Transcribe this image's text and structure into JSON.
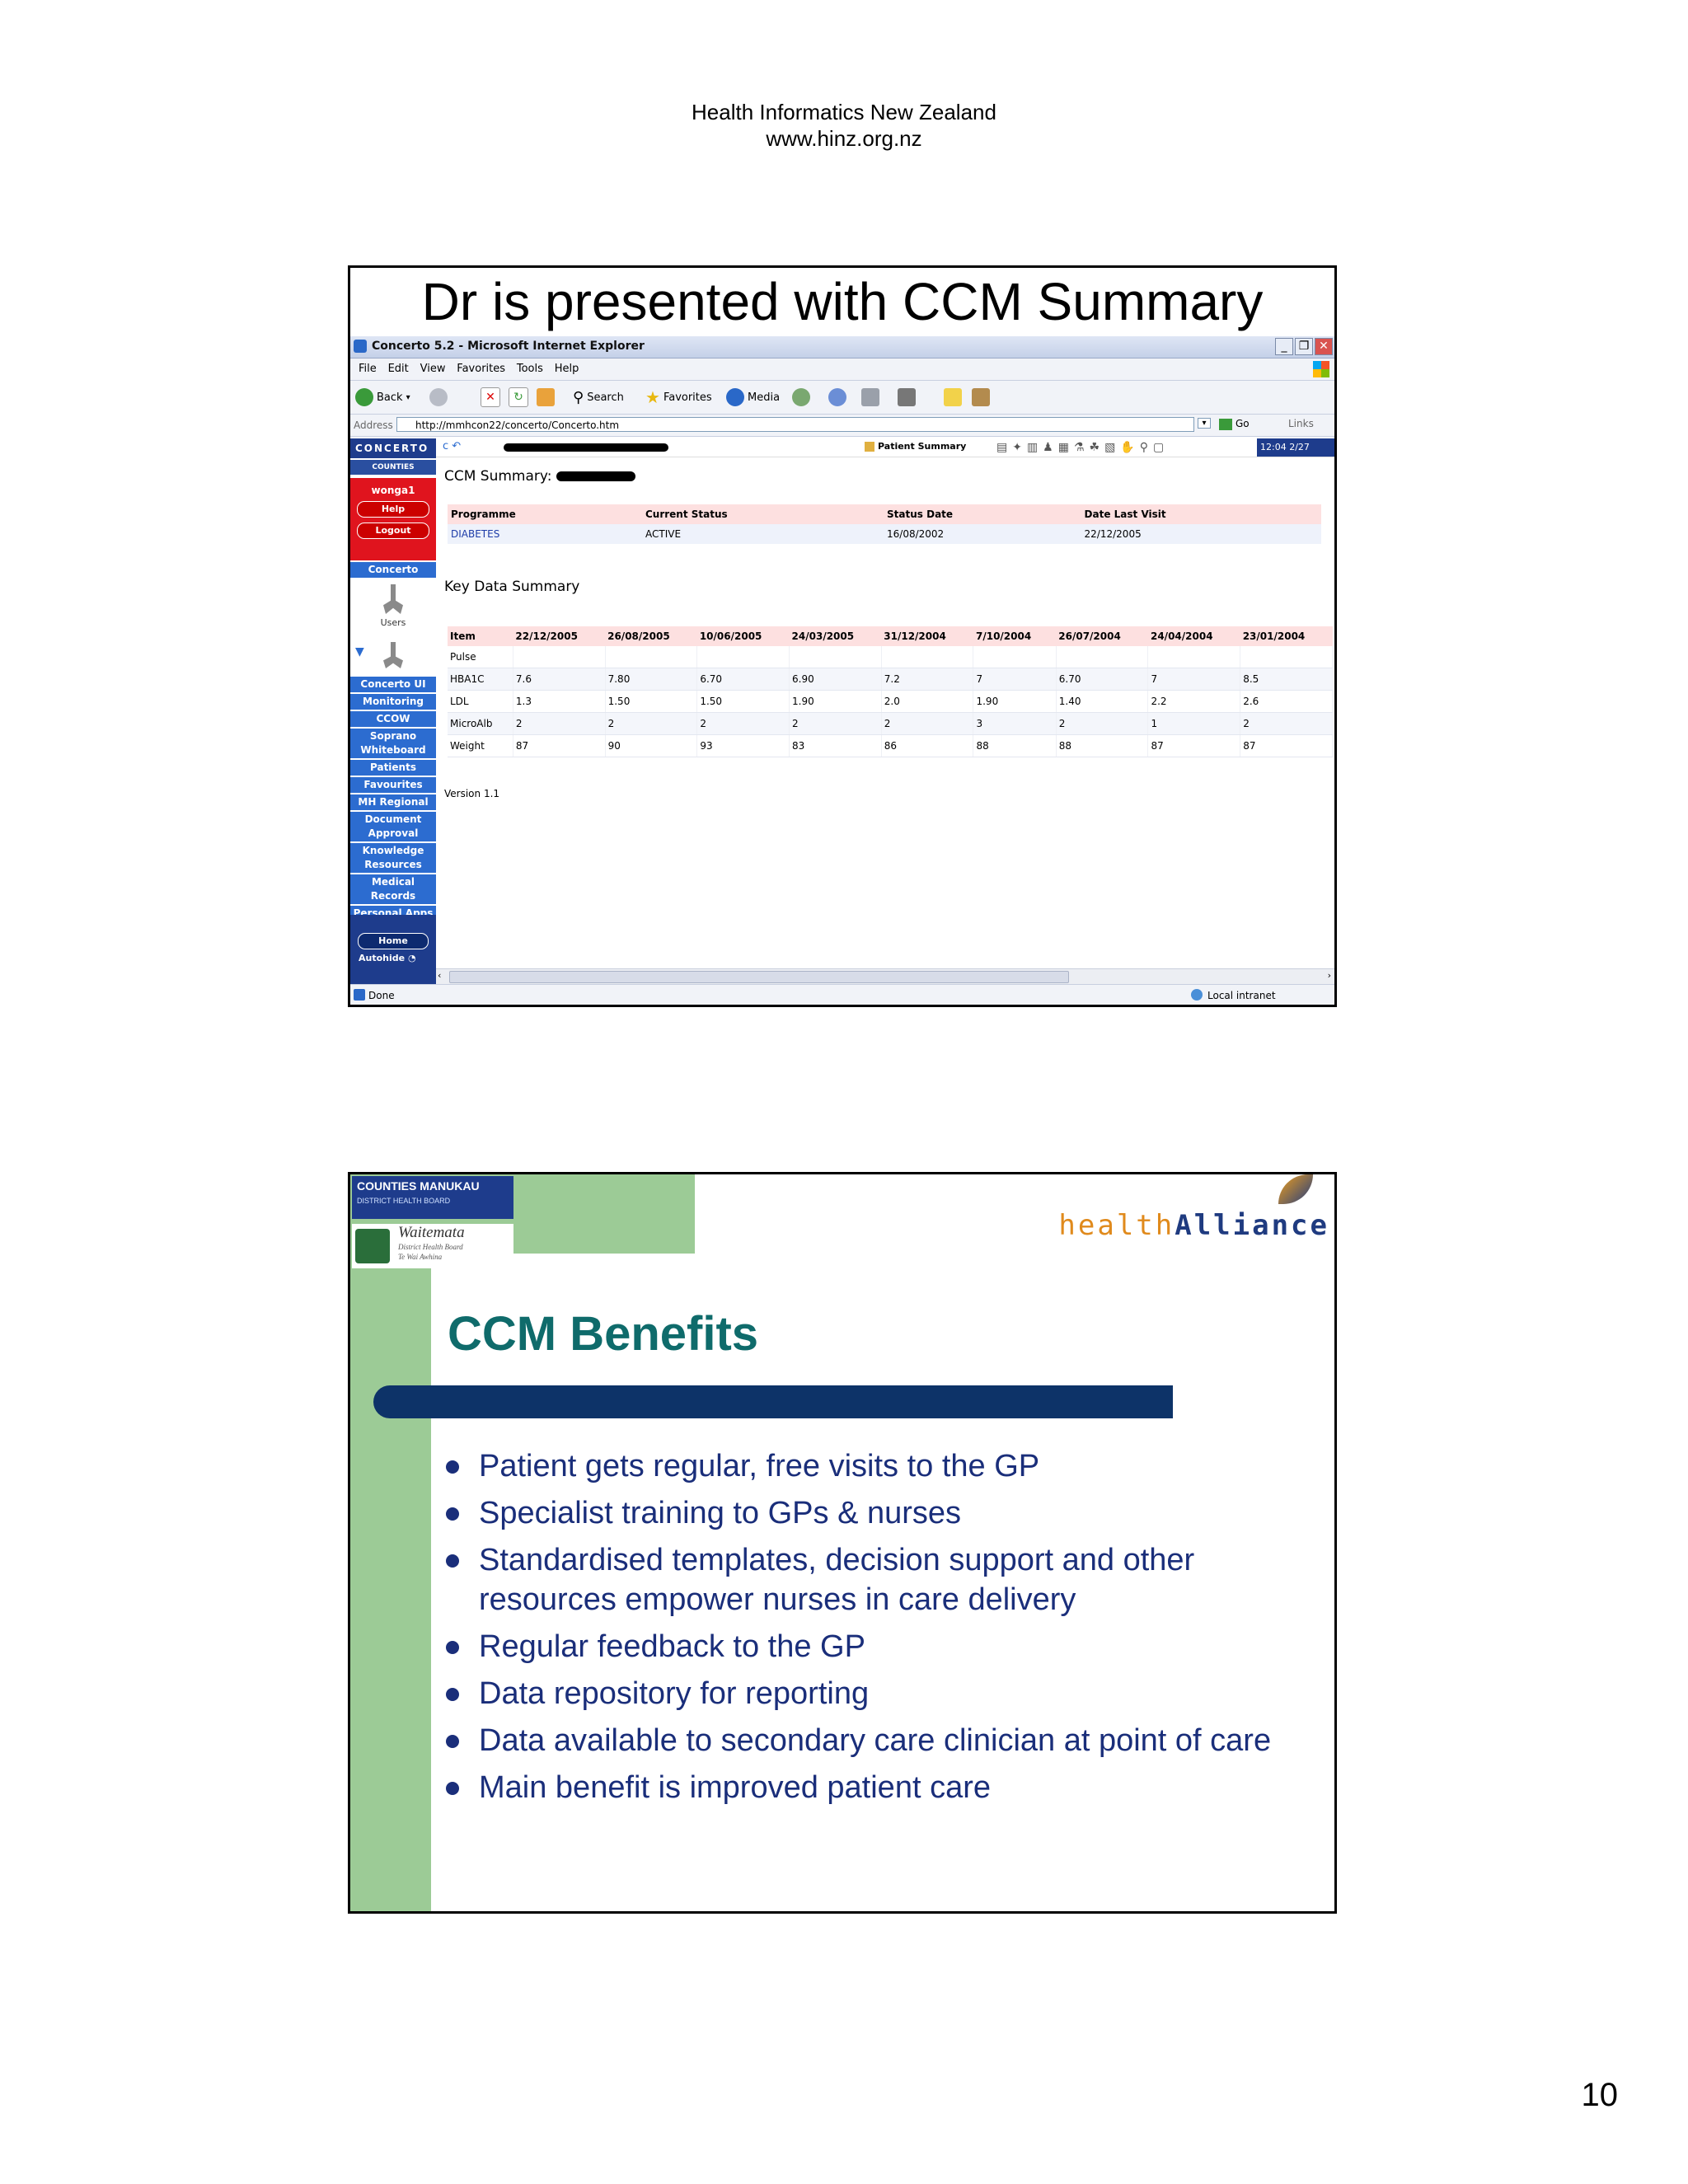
{
  "page": {
    "header_line1": "Health Informatics New Zealand",
    "header_line2": "www.hinz.org.nz",
    "number": "10"
  },
  "slide1": {
    "title": "Dr is presented with CCM Summary",
    "browser": {
      "window_title": "Concerto 5.2 - Microsoft Internet Explorer",
      "menu": [
        "File",
        "Edit",
        "View",
        "Favorites",
        "Tools",
        "Help"
      ],
      "toolbar": {
        "back": "Back",
        "search": "Search",
        "favorites": "Favorites",
        "media": "Media"
      },
      "address_label": "Address",
      "url": "http://mmhcon22/concerto/Concerto.htm",
      "go": "Go",
      "links": "Links",
      "status_left": "Done",
      "status_right": "Local intranet"
    },
    "app": {
      "brand": "CONCERTO",
      "subbrand": "COUNTIES MANUKAU",
      "user": "wonga1",
      "help": "Help",
      "logout": "Logout",
      "concerto": "Concerto",
      "users": "Users",
      "nav": [
        "Concerto UI",
        "Monitoring",
        "CCOW",
        "Soprano Whiteboard",
        "Patients",
        "Favourites",
        "MH Regional",
        "Document Approval",
        "Knowledge Resources",
        "Medical Records",
        "Personal Apps"
      ],
      "home": "Home",
      "autohide": "Autohide",
      "patient_summary": "Patient Summary",
      "clock": "12:04 2/27",
      "ccm_heading": "CCM Summary:",
      "programme_table": {
        "headers": [
          "Programme",
          "Current Status",
          "Status Date",
          "Date Last Visit"
        ],
        "row": [
          "DIABETES",
          "ACTIVE",
          "16/08/2002",
          "22/12/2005"
        ]
      },
      "key_data_heading": "Key Data Summary",
      "data_table": {
        "headers": [
          "Item",
          "22/12/2005",
          "26/08/2005",
          "10/06/2005",
          "24/03/2005",
          "31/12/2004",
          "7/10/2004",
          "26/07/2004",
          "24/04/2004",
          "23/01/2004"
        ],
        "rows": [
          [
            "Pulse",
            "",
            "",
            "",
            "",
            "",
            "",
            "",
            "",
            ""
          ],
          [
            "HBA1C",
            "7.6",
            "7.80",
            "6.70",
            "6.90",
            "7.2",
            "7",
            "6.70",
            "7",
            "8.5"
          ],
          [
            "LDL",
            "1.3",
            "1.50",
            "1.50",
            "1.90",
            "2.0",
            "1.90",
            "1.40",
            "2.2",
            "2.6"
          ],
          [
            "MicroAlb",
            "2",
            "2",
            "2",
            "2",
            "2",
            "3",
            "2",
            "1",
            "2"
          ],
          [
            "Weight",
            "87",
            "90",
            "93",
            "83",
            "86",
            "88",
            "88",
            "87",
            "87"
          ]
        ]
      },
      "version": "Version 1.1"
    }
  },
  "slide2": {
    "logo_cm": "COUNTIES MANUKAU",
    "logo_cm_sub": "DISTRICT HEALTH BOARD",
    "logo_wm": "Waitemata",
    "logo_wm_sub1": "District Health Board",
    "logo_wm_sub2": "Te Wai Awhina",
    "ha_health": "health",
    "ha_alliance": "Alliance",
    "title": "CCM Benefits",
    "bullets": [
      "Patient gets regular, free visits to the GP",
      "Specialist training to GPs & nurses",
      "Standardised templates, decision support and other resources empower nurses in care delivery",
      "Regular feedback to the GP",
      "Data repository for reporting",
      "Data available to secondary care clinician at point of care",
      "Main benefit is improved patient care"
    ]
  }
}
